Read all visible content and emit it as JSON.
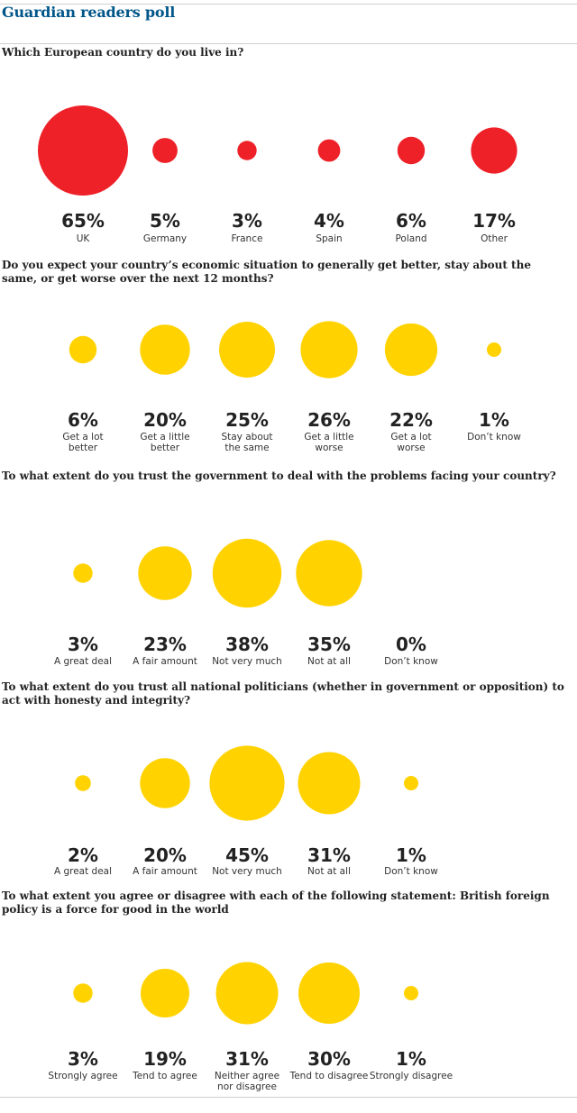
{
  "title": "Guardian readers poll",
  "colors": {
    "red": "#ee2028",
    "yellow": "#ffd200",
    "overlap": "#f8b020",
    "title": "#005689"
  },
  "chart_data": [
    {
      "type": "bubble",
      "question": "Which European country do you live in?",
      "color": "red",
      "categories": [
        "UK",
        "Germany",
        "France",
        "Spain",
        "Poland",
        "Other"
      ],
      "values": [
        65,
        5,
        3,
        4,
        6,
        17
      ],
      "value_labels": [
        "65%",
        "5%",
        "3%",
        "4%",
        "6%",
        "17%"
      ]
    },
    {
      "type": "bubble",
      "question": "Do you expect your country’s economic situation to generally get better, stay about the same, or get worse over the next 12 months?",
      "color": "yellow",
      "categories": [
        "Get a lot\nbetter",
        "Get a little\nbetter",
        "Stay about\nthe same",
        "Get a little\nworse",
        "Get a lot\nworse",
        "Don’t know"
      ],
      "values": [
        6,
        20,
        25,
        26,
        22,
        1
      ],
      "value_labels": [
        "6%",
        "20%",
        "25%",
        "26%",
        "22%",
        "1%"
      ]
    },
    {
      "type": "bubble",
      "question": "To what extent do you trust the government to deal with the problems facing your country?",
      "color": "yellow",
      "categories": [
        "A great deal",
        "A fair amount",
        "Not very much",
        "Not at all",
        "Don’t know"
      ],
      "values": [
        3,
        23,
        38,
        35,
        0
      ],
      "value_labels": [
        "3%",
        "23%",
        "38%",
        "35%",
        "0%"
      ]
    },
    {
      "type": "bubble",
      "question": "To what extent do you trust all national politicians (whether in government or opposition) to act with honesty and integrity?",
      "color": "yellow",
      "categories": [
        "A great deal",
        "A fair amount",
        "Not very much",
        "Not at all",
        "Don’t know"
      ],
      "values": [
        2,
        20,
        45,
        31,
        1
      ],
      "value_labels": [
        "2%",
        "20%",
        "45%",
        "31%",
        "1%"
      ]
    },
    {
      "type": "bubble",
      "question": "To what extent you agree or disagree with each of the following statement: British foreign policy is a force for good in the world",
      "color": "yellow",
      "categories": [
        "Strongly agree",
        "Tend to agree",
        "Neither agree\nnor disagree",
        "Tend to disagree",
        "Strongly  disagree"
      ],
      "values": [
        3,
        19,
        31,
        30,
        1
      ],
      "value_labels": [
        "3%",
        "19%",
        "31%",
        "30%",
        "1%"
      ]
    }
  ]
}
